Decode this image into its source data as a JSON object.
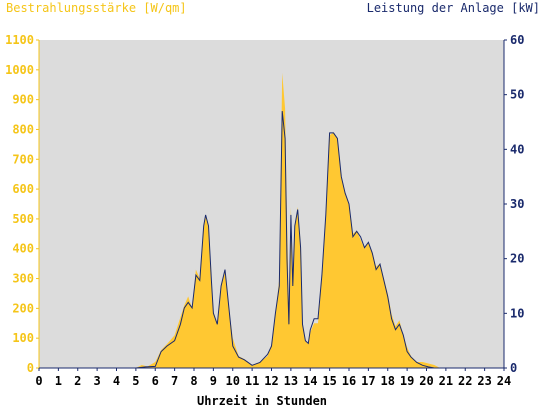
{
  "chart_data": {
    "type": "area",
    "left_axis_title": "Bestrahlungsstärke [W/qm]",
    "right_axis_title": "Leistung der Anlage [kW]",
    "xlabel": "Uhrzeit in Stunden",
    "xlim": [
      0,
      24
    ],
    "x_ticks": [
      "0",
      "1",
      "2",
      "3",
      "4",
      "5",
      "6",
      "7",
      "8",
      "9",
      "10",
      "11",
      "12",
      "13",
      "14",
      "15",
      "16",
      "17",
      "18",
      "19",
      "20",
      "21",
      "22",
      "23",
      "24"
    ],
    "ylim_left": [
      0,
      1100
    ],
    "left_ticks": [
      "0",
      "100",
      "200",
      "300",
      "400",
      "500",
      "600",
      "700",
      "800",
      "900",
      "1000",
      "1100"
    ],
    "ylim_right": [
      0,
      60
    ],
    "right_ticks": [
      "0",
      "10",
      "20",
      "30",
      "40",
      "50",
      "60"
    ],
    "grid": false,
    "colors": {
      "plot_bg": "#dcdcdc",
      "irradiance": "#ffc832",
      "power": "#1a2a6c",
      "left_text": "#f5c518",
      "right_text": "#1a2a6c"
    },
    "series": [
      {
        "axis": "left",
        "x": [
          0,
          5.0,
          5.3,
          5.6,
          6.0,
          6.3,
          6.6,
          7.0,
          7.3,
          7.5,
          7.7,
          7.9,
          8.1,
          8.3,
          8.5,
          8.6,
          8.75,
          8.9,
          9.0,
          9.2,
          9.4,
          9.6,
          9.8,
          10.0,
          10.3,
          10.6,
          11.0,
          11.4,
          11.8,
          12.0,
          12.2,
          12.4,
          12.55,
          12.7,
          12.8,
          12.9,
          13.0,
          13.1,
          13.2,
          13.35,
          13.5,
          13.6,
          13.75,
          13.9,
          14.0,
          14.2,
          14.4,
          14.6,
          14.8,
          15.0,
          15.2,
          15.4,
          15.6,
          15.8,
          16.0,
          16.2,
          16.4,
          16.6,
          16.8,
          17.0,
          17.2,
          17.4,
          17.6,
          17.8,
          18.0,
          18.2,
          18.4,
          18.6,
          18.8,
          19.0,
          19.2,
          19.5,
          19.8,
          20.1,
          20.4,
          20.7,
          24
        ],
        "values": [
          0,
          0,
          10,
          5,
          20,
          60,
          80,
          110,
          170,
          210,
          240,
          200,
          330,
          300,
          470,
          510,
          470,
          300,
          190,
          150,
          280,
          320,
          200,
          100,
          40,
          30,
          10,
          20,
          40,
          80,
          180,
          300,
          990,
          870,
          500,
          200,
          540,
          280,
          480,
          540,
          420,
          150,
          90,
          80,
          120,
          150,
          150,
          300,
          500,
          780,
          790,
          770,
          640,
          590,
          550,
          450,
          460,
          430,
          400,
          420,
          390,
          340,
          350,
          300,
          250,
          180,
          140,
          160,
          110,
          70,
          40,
          20,
          20,
          15,
          10,
          0,
          0
        ]
      },
      {
        "axis": "right",
        "x": [
          0,
          5.0,
          5.5,
          6.0,
          6.3,
          6.6,
          7.0,
          7.3,
          7.5,
          7.7,
          7.9,
          8.1,
          8.3,
          8.5,
          8.6,
          8.75,
          8.9,
          9.0,
          9.2,
          9.4,
          9.6,
          9.8,
          10.0,
          10.3,
          10.6,
          11.0,
          11.4,
          11.8,
          12.0,
          12.2,
          12.4,
          12.55,
          12.7,
          12.8,
          12.9,
          13.0,
          13.1,
          13.2,
          13.35,
          13.5,
          13.6,
          13.75,
          13.9,
          14.0,
          14.2,
          14.4,
          14.6,
          14.8,
          15.0,
          15.2,
          15.4,
          15.6,
          15.8,
          16.0,
          16.2,
          16.4,
          16.6,
          16.8,
          17.0,
          17.2,
          17.4,
          17.6,
          17.8,
          18.0,
          18.2,
          18.4,
          18.6,
          18.8,
          19.0,
          19.2,
          19.5,
          19.8,
          20.1,
          20.4,
          20.7,
          24
        ],
        "values": [
          0,
          0,
          0.2,
          0.3,
          3,
          4,
          5,
          8,
          11,
          12,
          11,
          17,
          16,
          26,
          28,
          26,
          16,
          10,
          8,
          15,
          18,
          11,
          4,
          2,
          1.5,
          0.5,
          1,
          2.5,
          4,
          10,
          15,
          47,
          42,
          20,
          8,
          28,
          15,
          26,
          29,
          22,
          8,
          5,
          4.5,
          7,
          9,
          9,
          17,
          28,
          43,
          43,
          42,
          35,
          32,
          30,
          24,
          25,
          24,
          22,
          23,
          21,
          18,
          19,
          16,
          13,
          9,
          7,
          8,
          6,
          3,
          2,
          1,
          0.5,
          0.2,
          0,
          0,
          0
        ]
      }
    ]
  }
}
